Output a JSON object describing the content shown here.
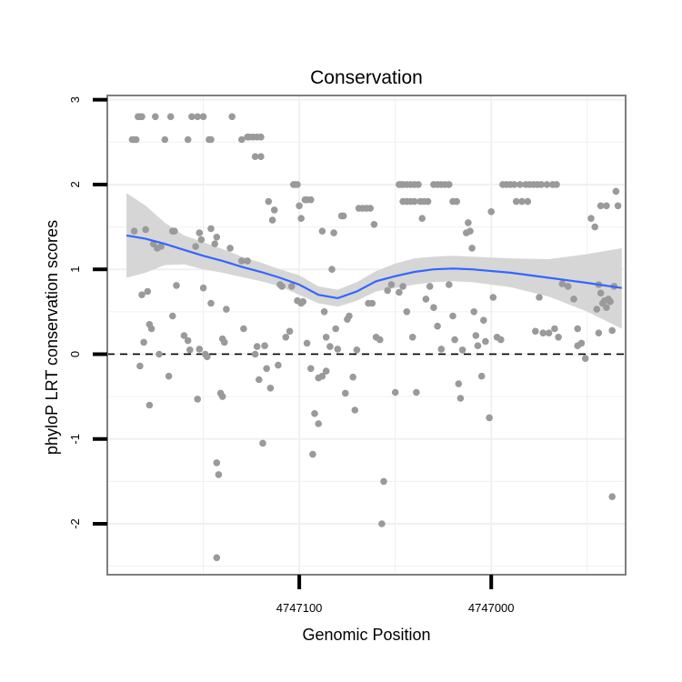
{
  "chart_data": {
    "type": "scatter",
    "title": "Conservation",
    "xlabel": "Genomic Position",
    "ylabel": "phyloP LRT conservation scores",
    "x_reversed": true,
    "xlim": [
      4747200,
      4746930
    ],
    "ylim": [
      -2.6,
      3.05
    ],
    "x_ticks": [
      4747100,
      4747000
    ],
    "x_tick_labels": [
      "4747100",
      "4747000"
    ],
    "y_ticks": [
      -2,
      -1,
      0,
      1,
      2,
      3
    ],
    "y_tick_labels": [
      "-2",
      "-1",
      "0",
      "1",
      "2",
      "3"
    ],
    "reference_line": {
      "y": 0,
      "style": "dashed"
    },
    "colors": {
      "points": "#9a9a9a",
      "smooth": "#3366ff",
      "ribbon": "#d6d6d6",
      "grid": "#f0f0f0",
      "frame": "#7f7f7f"
    },
    "points": [
      [
        4747187,
        2.53
      ],
      [
        4747186,
        2.53
      ],
      [
        4747185,
        2.53
      ],
      [
        4747184,
        2.8
      ],
      [
        4747183,
        2.8
      ],
      [
        4747182,
        2.8
      ],
      [
        4747175,
        2.8
      ],
      [
        4747167,
        2.8
      ],
      [
        4747170,
        2.53
      ],
      [
        4747158,
        2.53
      ],
      [
        4747156,
        2.8
      ],
      [
        4747153,
        2.8
      ],
      [
        4747150,
        2.8
      ],
      [
        4747147,
        2.53
      ],
      [
        4747146,
        2.53
      ],
      [
        4747135,
        2.8
      ],
      [
        4747130,
        2.53
      ],
      [
        4747127,
        2.56
      ],
      [
        4747126,
        2.56
      ],
      [
        4747124,
        2.56
      ],
      [
        4747122,
        2.56
      ],
      [
        4747120,
        2.56
      ],
      [
        4747123,
        2.33
      ],
      [
        4747120,
        2.33
      ],
      [
        4747186,
        1.45
      ],
      [
        4747180,
        1.47
      ],
      [
        4747176,
        1.3
      ],
      [
        4747174,
        1.25
      ],
      [
        4747172,
        1.27
      ],
      [
        4747166,
        1.45
      ],
      [
        4747165,
        1.45
      ],
      [
        4747164,
        0.81
      ],
      [
        4747182,
        0.7
      ],
      [
        4747179,
        0.74
      ],
      [
        4747181,
        0.14
      ],
      [
        4747178,
        0.35
      ],
      [
        4747177,
        0.3
      ],
      [
        4747173,
        0.0
      ],
      [
        4747168,
        -0.26
      ],
      [
        4747166,
        0.45
      ],
      [
        4747183,
        -0.14
      ],
      [
        4747178,
        -0.6
      ],
      [
        4747160,
        0.22
      ],
      [
        4747158,
        0.16
      ],
      [
        4747157,
        0.05
      ],
      [
        4747153,
        -0.53
      ],
      [
        4747154,
        1.27
      ],
      [
        4747152,
        1.43
      ],
      [
        4747151,
        1.35
      ],
      [
        4747150,
        0.78
      ],
      [
        4747149,
        0.0
      ],
      [
        4747146,
        1.48
      ],
      [
        4747144,
        1.3
      ],
      [
        4747143,
        1.38
      ],
      [
        4747152,
        0.06
      ],
      [
        4747148,
        -0.03
      ],
      [
        4747146,
        0.6
      ],
      [
        4747141,
        -0.46
      ],
      [
        4747140,
        0.18
      ],
      [
        4747139,
        0.14
      ],
      [
        4747138,
        0.53
      ],
      [
        4747136,
        1.25
      ],
      [
        4747140,
        -0.5
      ],
      [
        4747143,
        -1.28
      ],
      [
        4747142,
        -1.42
      ],
      [
        4747143,
        -2.4
      ],
      [
        4747130,
        1.1
      ],
      [
        4747127,
        1.1
      ],
      [
        4747129,
        0.3
      ],
      [
        4747123,
        -0.0
      ],
      [
        4747122,
        0.09
      ],
      [
        4747121,
        -0.3
      ],
      [
        4747119,
        -1.05
      ],
      [
        4747116,
        1.8
      ],
      [
        4747114,
        1.58
      ],
      [
        4747113,
        1.7
      ],
      [
        4747110,
        0.82
      ],
      [
        4747109,
        0.8
      ],
      [
        4747107,
        0.2
      ],
      [
        4747105,
        0.27
      ],
      [
        4747104,
        0.8
      ],
      [
        4747118,
        0.1
      ],
      [
        4747117,
        -0.17
      ],
      [
        4747115,
        -0.4
      ],
      [
        4747111,
        -0.13
      ],
      [
        4747103,
        2.0
      ],
      [
        4747102,
        2.0
      ],
      [
        4747101,
        2.0
      ],
      [
        4747100,
        1.75
      ],
      [
        4747099,
        1.6
      ],
      [
        4747097,
        1.82
      ],
      [
        4747096,
        1.82
      ],
      [
        4747094,
        1.82
      ],
      [
        4747101,
        0.63
      ],
      [
        4747099,
        0.6
      ],
      [
        4747098,
        0.62
      ],
      [
        4747096,
        0.13
      ],
      [
        4747094,
        -0.17
      ],
      [
        4747093,
        -1.18
      ],
      [
        4747092,
        -0.7
      ],
      [
        4747090,
        -0.82
      ],
      [
        4747088,
        1.45
      ],
      [
        4747087,
        0.5
      ],
      [
        4747086,
        0.2
      ],
      [
        4747084,
        0.09
      ],
      [
        4747090,
        -0.28
      ],
      [
        4747088,
        -0.26
      ],
      [
        4747086,
        -0.2
      ],
      [
        4747083,
        1.0
      ],
      [
        4747082,
        1.43
      ],
      [
        4747081,
        0.3
      ],
      [
        4747080,
        0.06
      ],
      [
        4747078,
        1.63
      ],
      [
        4747077,
        1.63
      ],
      [
        4747076,
        -0.46
      ],
      [
        4747075,
        0.41
      ],
      [
        4747074,
        0.45
      ],
      [
        4747072,
        -0.27
      ],
      [
        4747071,
        -0.66
      ],
      [
        4747070,
        0.05
      ],
      [
        4747069,
        1.72
      ],
      [
        4747067,
        1.72
      ],
      [
        4747065,
        1.72
      ],
      [
        4747063,
        1.72
      ],
      [
        4747061,
        1.53
      ],
      [
        4747064,
        0.6
      ],
      [
        4747062,
        0.6
      ],
      [
        4747060,
        0.2
      ],
      [
        4747058,
        0.17
      ],
      [
        4747057,
        -2.0
      ],
      [
        4747056,
        -1.5
      ],
      [
        4747054,
        0.75
      ],
      [
        4747052,
        0.82
      ],
      [
        4747050,
        -0.45
      ],
      [
        4747048,
        2.0
      ],
      [
        4747047,
        2.0
      ],
      [
        4747046,
        2.0
      ],
      [
        4747044,
        2.0
      ],
      [
        4747042,
        2.0
      ],
      [
        4747040,
        2.0
      ],
      [
        4747038,
        2.0
      ],
      [
        4747046,
        1.8
      ],
      [
        4747044,
        1.8
      ],
      [
        4747042,
        1.8
      ],
      [
        4747040,
        1.8
      ],
      [
        4747048,
        0.73
      ],
      [
        4747046,
        0.8
      ],
      [
        4747044,
        0.5
      ],
      [
        4747041,
        0.2
      ],
      [
        4747039,
        -0.45
      ],
      [
        4747037,
        1.8
      ],
      [
        4747035,
        1.8
      ],
      [
        4747033,
        1.8
      ],
      [
        4747030,
        2.0
      ],
      [
        4747028,
        2.0
      ],
      [
        4747026,
        2.0
      ],
      [
        4747024,
        2.0
      ],
      [
        4747022,
        2.0
      ],
      [
        4747020,
        1.8
      ],
      [
        4747018,
        1.8
      ],
      [
        4747036,
        1.6
      ],
      [
        4747034,
        0.65
      ],
      [
        4747032,
        0.8
      ],
      [
        4747030,
        0.55
      ],
      [
        4747028,
        0.33
      ],
      [
        4747026,
        0.06
      ],
      [
        4747022,
        0.82
      ],
      [
        4747020,
        0.45
      ],
      [
        4747019,
        0.17
      ],
      [
        4747017,
        -0.35
      ],
      [
        4747016,
        -0.52
      ],
      [
        4747015,
        0.05
      ],
      [
        4747013,
        1.43
      ],
      [
        4747012,
        1.55
      ],
      [
        4747011,
        1.45
      ],
      [
        4747010,
        1.25
      ],
      [
        4747009,
        0.5
      ],
      [
        4747008,
        0.22
      ],
      [
        4747007,
        0.1
      ],
      [
        4747005,
        -0.26
      ],
      [
        4747004,
        0.4
      ],
      [
        4747003,
        0.15
      ],
      [
        4747001,
        -0.75
      ],
      [
        4747000,
        1.68
      ],
      [
        4746999,
        0.67
      ],
      [
        4746997,
        0.2
      ],
      [
        4746995,
        0.17
      ],
      [
        4746994,
        2.0
      ],
      [
        4746992,
        2.0
      ],
      [
        4746990,
        2.0
      ],
      [
        4746988,
        2.0
      ],
      [
        4746985,
        2.0
      ],
      [
        4746982,
        2.0
      ],
      [
        4746980,
        2.0
      ],
      [
        4746978,
        2.0
      ],
      [
        4746976,
        2.0
      ],
      [
        4746974,
        2.0
      ],
      [
        4746971,
        2.0
      ],
      [
        4746968,
        2.0
      ],
      [
        4746966,
        2.0
      ],
      [
        4746987,
        1.8
      ],
      [
        4746984,
        1.8
      ],
      [
        4746981,
        1.8
      ],
      [
        4746977,
        0.27
      ],
      [
        4746975,
        0.67
      ],
      [
        4746973,
        0.25
      ],
      [
        4746970,
        0.25
      ],
      [
        4746967,
        0.3
      ],
      [
        4746965,
        0.2
      ],
      [
        4746963,
        0.83
      ],
      [
        4746960,
        0.8
      ],
      [
        4746957,
        0.65
      ],
      [
        4746955,
        0.3
      ],
      [
        4746953,
        0.13
      ],
      [
        4746951,
        -0.05
      ],
      [
        4746955,
        0.1
      ],
      [
        4746948,
        1.6
      ],
      [
        4746946,
        1.5
      ],
      [
        4746945,
        0.53
      ],
      [
        4746944,
        0.25
      ],
      [
        4746944,
        0.82
      ],
      [
        4746943,
        0.72
      ],
      [
        4746943,
        1.75
      ],
      [
        4746940,
        1.75
      ],
      [
        4746942,
        0.6
      ],
      [
        4746941,
        0.63
      ],
      [
        4746940,
        0.55
      ],
      [
        4746939,
        0.65
      ],
      [
        4746938,
        0.62
      ],
      [
        4746937,
        0.28
      ],
      [
        4746936,
        0.8
      ],
      [
        4746935,
        1.92
      ],
      [
        4746934,
        1.75
      ],
      [
        4746937,
        -1.68
      ]
    ],
    "smooth": [
      [
        4747190,
        1.4
      ],
      [
        4747180,
        1.36
      ],
      [
        4747170,
        1.3
      ],
      [
        4747160,
        1.23
      ],
      [
        4747150,
        1.16
      ],
      [
        4747140,
        1.1
      ],
      [
        4747130,
        1.03
      ],
      [
        4747120,
        0.97
      ],
      [
        4747110,
        0.9
      ],
      [
        4747100,
        0.82
      ],
      [
        4747090,
        0.7
      ],
      [
        4747080,
        0.66
      ],
      [
        4747070,
        0.74
      ],
      [
        4747060,
        0.86
      ],
      [
        4747050,
        0.92
      ],
      [
        4747040,
        0.97
      ],
      [
        4747030,
        1.0
      ],
      [
        4747020,
        1.01
      ],
      [
        4747010,
        1.0
      ],
      [
        4746990,
        0.96
      ],
      [
        4746970,
        0.9
      ],
      [
        4746950,
        0.84
      ],
      [
        4746932,
        0.78
      ]
    ],
    "ribbon_upper": [
      [
        4747190,
        1.9
      ],
      [
        4747180,
        1.75
      ],
      [
        4747170,
        1.55
      ],
      [
        4747160,
        1.4
      ],
      [
        4747150,
        1.32
      ],
      [
        4747140,
        1.24
      ],
      [
        4747130,
        1.15
      ],
      [
        4747120,
        1.08
      ],
      [
        4747110,
        1.0
      ],
      [
        4747100,
        0.93
      ],
      [
        4747090,
        0.8
      ],
      [
        4747080,
        0.76
      ],
      [
        4747070,
        0.85
      ],
      [
        4747060,
        0.98
      ],
      [
        4747050,
        1.07
      ],
      [
        4747040,
        1.13
      ],
      [
        4747030,
        1.15
      ],
      [
        4747020,
        1.16
      ],
      [
        4747010,
        1.15
      ],
      [
        4746990,
        1.13
      ],
      [
        4746970,
        1.12
      ],
      [
        4746950,
        1.18
      ],
      [
        4746932,
        1.25
      ]
    ],
    "ribbon_lower": [
      [
        4747190,
        0.9
      ],
      [
        4747180,
        0.96
      ],
      [
        4747170,
        1.05
      ],
      [
        4747160,
        1.06
      ],
      [
        4747150,
        1.0
      ],
      [
        4747140,
        0.96
      ],
      [
        4747130,
        0.91
      ],
      [
        4747120,
        0.86
      ],
      [
        4747110,
        0.8
      ],
      [
        4747100,
        0.7
      ],
      [
        4747090,
        0.6
      ],
      [
        4747080,
        0.56
      ],
      [
        4747070,
        0.63
      ],
      [
        4747060,
        0.74
      ],
      [
        4747050,
        0.78
      ],
      [
        4747040,
        0.82
      ],
      [
        4747030,
        0.85
      ],
      [
        4747020,
        0.86
      ],
      [
        4747010,
        0.85
      ],
      [
        4746990,
        0.79
      ],
      [
        4746970,
        0.68
      ],
      [
        4746950,
        0.5
      ],
      [
        4746932,
        0.3
      ]
    ]
  }
}
